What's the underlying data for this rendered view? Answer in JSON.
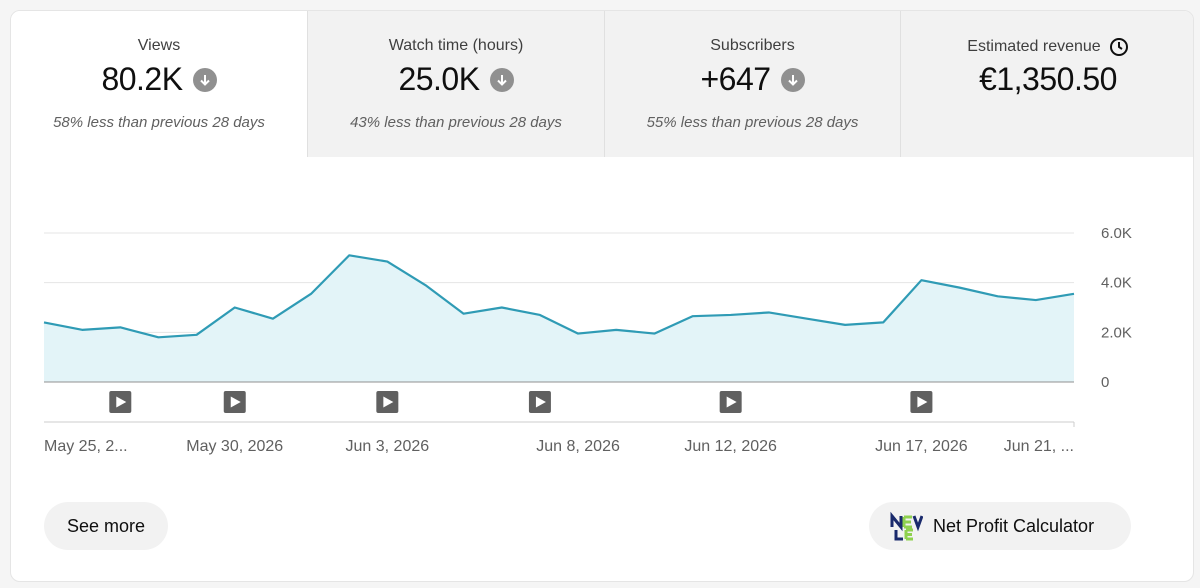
{
  "metrics": [
    {
      "label": "Views",
      "value": "80.2K",
      "delta": "58% less than previous 28 days",
      "trend_icon": "arrow-down-circle-icon"
    },
    {
      "label": "Watch time (hours)",
      "value": "25.0K",
      "delta": "43% less than previous 28 days",
      "trend_icon": "arrow-down-circle-icon"
    },
    {
      "label": "Subscribers",
      "value": "+647",
      "delta": "55% less than previous 28 days",
      "trend_icon": "arrow-down-circle-icon"
    },
    {
      "label": "Estimated revenue",
      "value": "€1,350.50",
      "label_icon": "clock-icon"
    }
  ],
  "chart_data": {
    "type": "area",
    "x_tick_labels": [
      "May 25, 2...",
      "May 30, 2026",
      "Jun 3, 2026",
      "Jun 8, 2026",
      "Jun 12, 2026",
      "Jun 17, 2026",
      "Jun 21, ..."
    ],
    "y_tick_labels": [
      "6.0K",
      "4.0K",
      "2.0K",
      "0"
    ],
    "ylim": [
      0,
      6000
    ],
    "y": [
      2400,
      2100,
      2200,
      1800,
      1900,
      3000,
      2550,
      3550,
      5100,
      4850,
      3900,
      2750,
      3000,
      2700,
      1950,
      2100,
      1950,
      2650,
      2700,
      2800,
      2550,
      2300,
      2400,
      4100,
      3800,
      3450,
      3300,
      3550
    ],
    "video_markers_at_index": [
      2,
      5,
      9,
      13,
      18,
      23
    ],
    "grid": true,
    "colors": {
      "line": "#2f9bb5",
      "fill": "#e3f4f8"
    }
  },
  "buttons": {
    "see_more": "See more",
    "net_profit": "Net Profit Calculator"
  }
}
